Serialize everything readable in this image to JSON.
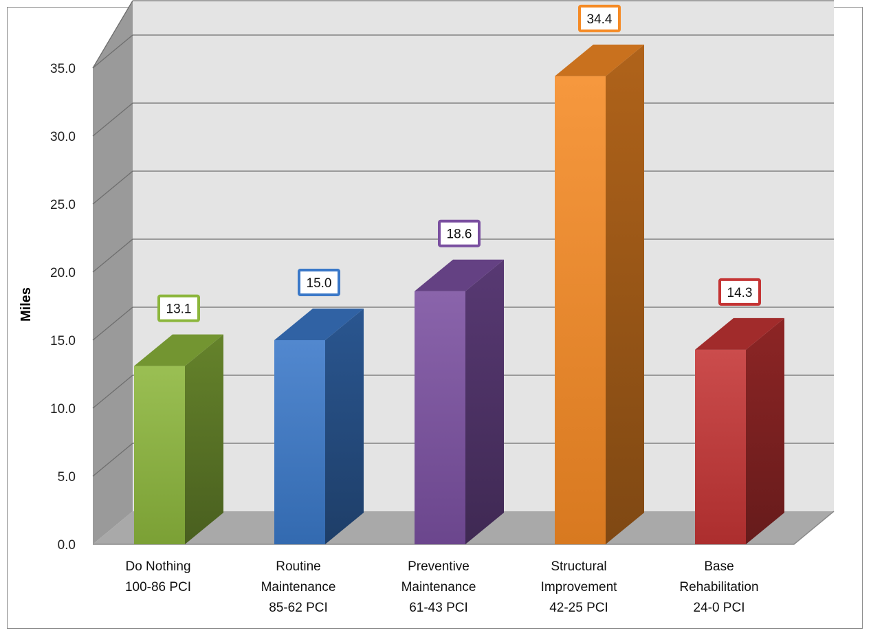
{
  "chart_data": {
    "type": "bar",
    "title": "",
    "xlabel": "",
    "ylabel": "Miles",
    "ylim": [
      0,
      35
    ],
    "yticks": [
      "0.0",
      "5.0",
      "10.0",
      "15.0",
      "20.0",
      "25.0",
      "30.0",
      "35.0"
    ],
    "grid": true,
    "three_d": true,
    "categories": [
      [
        "Do Nothing",
        "100-86 PCI"
      ],
      [
        "Routine",
        "Maintenance",
        "85-62 PCI"
      ],
      [
        "Preventive",
        "Maintenance",
        "61-43 PCI"
      ],
      [
        "Structural",
        "Improvement",
        "42-25 PCI"
      ],
      [
        "Base",
        "Rehabilitation",
        "24-0 PCI"
      ]
    ],
    "values": [
      13.1,
      15.0,
      18.6,
      34.4,
      14.3
    ],
    "data_labels": [
      "13.1",
      "15.0",
      "18.6",
      "34.4",
      "14.3"
    ],
    "colors": [
      "#8cb63c",
      "#3a78c8",
      "#7a4fa0",
      "#f58a24",
      "#c43434"
    ]
  }
}
